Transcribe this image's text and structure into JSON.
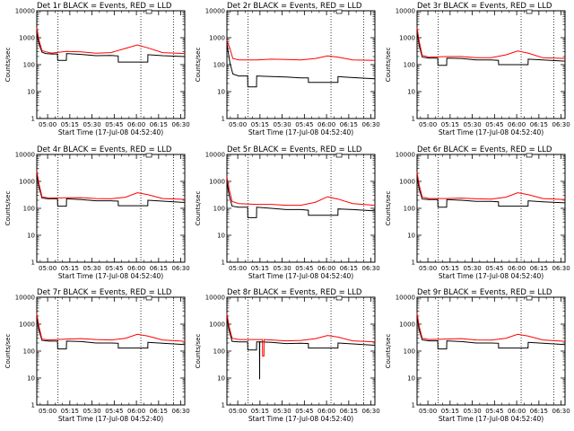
{
  "chart_data": {
    "type": "line",
    "layout": "3x3 grid",
    "ylabel": "Counts/sec",
    "xlabel": "Start Time (17-Jul-08 04:52:40)",
    "xticks": [
      "05:00",
      "05:15",
      "05:30",
      "05:45",
      "06:00",
      "06:15",
      "06:30"
    ],
    "xlim": [
      "04:52:40",
      "06:32:40"
    ],
    "yscale": "log",
    "ylim": [
      1,
      10000
    ],
    "yticks": [
      "1",
      "10",
      "100",
      "1000",
      "10000"
    ],
    "vlines": [
      "05:07",
      "06:03",
      "06:25"
    ],
    "series_colors": {
      "events": "#000000",
      "lld": "#ff0000"
    },
    "panels": [
      {
        "title": "Det 1r BLACK = Events, RED = LLD",
        "lld": [
          [
            0,
            2400
          ],
          [
            1.5,
            800
          ],
          [
            3.5,
            330
          ],
          [
            6,
            300
          ],
          [
            10,
            270
          ],
          [
            20,
            310
          ],
          [
            30,
            300
          ],
          [
            40,
            265
          ],
          [
            50,
            280
          ],
          [
            60,
            400
          ],
          [
            68,
            540
          ],
          [
            75,
            420
          ],
          [
            85,
            280
          ],
          [
            100,
            260
          ]
        ],
        "events": [
          [
            0,
            1500
          ],
          [
            1.5,
            600
          ],
          [
            3.5,
            290
          ],
          [
            6,
            260
          ],
          [
            10,
            250
          ],
          [
            14,
            250
          ],
          [
            14.1,
            145
          ],
          [
            20,
            145
          ],
          [
            20.1,
            260
          ],
          [
            30,
            240
          ],
          [
            40,
            215
          ],
          [
            50,
            220
          ],
          [
            55,
            210
          ],
          [
            55.1,
            125
          ],
          [
            75,
            125
          ],
          [
            75.1,
            235
          ],
          [
            85,
            215
          ],
          [
            100,
            200
          ]
        ]
      },
      {
        "title": "Det 2r BLACK = Events, RED = LLD",
        "lld": [
          [
            0,
            800
          ],
          [
            2,
            400
          ],
          [
            4,
            170
          ],
          [
            8,
            150
          ],
          [
            20,
            150
          ],
          [
            30,
            160
          ],
          [
            40,
            155
          ],
          [
            50,
            150
          ],
          [
            60,
            170
          ],
          [
            68,
            210
          ],
          [
            75,
            190
          ],
          [
            85,
            150
          ],
          [
            100,
            145
          ]
        ],
        "events": [
          [
            0,
            600
          ],
          [
            2,
            120
          ],
          [
            4,
            45
          ],
          [
            8,
            38
          ],
          [
            14,
            38
          ],
          [
            14.1,
            15
          ],
          [
            20,
            15
          ],
          [
            20.1,
            38
          ],
          [
            30,
            36
          ],
          [
            40,
            35
          ],
          [
            50,
            32
          ],
          [
            55,
            32
          ],
          [
            55.1,
            22
          ],
          [
            75,
            22
          ],
          [
            75.1,
            36
          ],
          [
            85,
            33
          ],
          [
            100,
            30
          ]
        ]
      },
      {
        "title": "Det 3r BLACK = Events, RED = LLD",
        "lld": [
          [
            0,
            2400
          ],
          [
            1.5,
            700
          ],
          [
            3.5,
            220
          ],
          [
            8,
            190
          ],
          [
            20,
            200
          ],
          [
            30,
            200
          ],
          [
            40,
            180
          ],
          [
            50,
            180
          ],
          [
            60,
            230
          ],
          [
            68,
            320
          ],
          [
            75,
            270
          ],
          [
            85,
            180
          ],
          [
            100,
            170
          ]
        ],
        "events": [
          [
            0,
            1800
          ],
          [
            1.5,
            500
          ],
          [
            3.5,
            190
          ],
          [
            8,
            175
          ],
          [
            14,
            175
          ],
          [
            14.1,
            95
          ],
          [
            20,
            95
          ],
          [
            20.1,
            175
          ],
          [
            30,
            170
          ],
          [
            40,
            150
          ],
          [
            50,
            150
          ],
          [
            55,
            145
          ],
          [
            55.1,
            100
          ],
          [
            75,
            100
          ],
          [
            75.1,
            160
          ],
          [
            85,
            150
          ],
          [
            100,
            135
          ]
        ]
      },
      {
        "title": "Det 4r BLACK = Events, RED = LLD",
        "lld": [
          [
            0,
            2500
          ],
          [
            1.5,
            800
          ],
          [
            3.5,
            270
          ],
          [
            8,
            240
          ],
          [
            20,
            245
          ],
          [
            30,
            250
          ],
          [
            40,
            230
          ],
          [
            50,
            225
          ],
          [
            60,
            260
          ],
          [
            68,
            380
          ],
          [
            75,
            320
          ],
          [
            85,
            230
          ],
          [
            100,
            215
          ]
        ],
        "events": [
          [
            0,
            1800
          ],
          [
            1.5,
            600
          ],
          [
            3.5,
            240
          ],
          [
            8,
            225
          ],
          [
            14,
            225
          ],
          [
            14.1,
            120
          ],
          [
            20,
            120
          ],
          [
            20.1,
            225
          ],
          [
            30,
            210
          ],
          [
            40,
            190
          ],
          [
            50,
            190
          ],
          [
            55,
            185
          ],
          [
            55.1,
            125
          ],
          [
            75,
            125
          ],
          [
            75.1,
            200
          ],
          [
            85,
            185
          ],
          [
            100,
            165
          ]
        ]
      },
      {
        "title": "Det 5r BLACK = Events, RED = LLD",
        "lld": [
          [
            0,
            1500
          ],
          [
            1.5,
            500
          ],
          [
            3.5,
            180
          ],
          [
            8,
            150
          ],
          [
            20,
            140
          ],
          [
            30,
            140
          ],
          [
            40,
            130
          ],
          [
            50,
            130
          ],
          [
            60,
            170
          ],
          [
            68,
            270
          ],
          [
            75,
            220
          ],
          [
            85,
            150
          ],
          [
            100,
            130
          ]
        ],
        "events": [
          [
            0,
            1000
          ],
          [
            1.5,
            300
          ],
          [
            3.5,
            120
          ],
          [
            8,
            110
          ],
          [
            14,
            110
          ],
          [
            14.1,
            45
          ],
          [
            20,
            45
          ],
          [
            20.1,
            110
          ],
          [
            30,
            100
          ],
          [
            40,
            90
          ],
          [
            50,
            90
          ],
          [
            55,
            85
          ],
          [
            55.1,
            55
          ],
          [
            75,
            55
          ],
          [
            75.1,
            95
          ],
          [
            85,
            90
          ],
          [
            100,
            80
          ]
        ]
      },
      {
        "title": "Det 6r BLACK = Events, RED = LLD",
        "lld": [
          [
            0,
            2200
          ],
          [
            1.5,
            700
          ],
          [
            3.5,
            260
          ],
          [
            8,
            230
          ],
          [
            20,
            230
          ],
          [
            30,
            240
          ],
          [
            40,
            225
          ],
          [
            50,
            220
          ],
          [
            60,
            260
          ],
          [
            68,
            380
          ],
          [
            75,
            320
          ],
          [
            85,
            230
          ],
          [
            100,
            210
          ]
        ],
        "events": [
          [
            0,
            1600
          ],
          [
            1.5,
            500
          ],
          [
            3.5,
            220
          ],
          [
            8,
            210
          ],
          [
            14,
            210
          ],
          [
            14.1,
            110
          ],
          [
            20,
            110
          ],
          [
            20.1,
            210
          ],
          [
            30,
            200
          ],
          [
            40,
            180
          ],
          [
            50,
            180
          ],
          [
            55,
            175
          ],
          [
            55.1,
            120
          ],
          [
            75,
            120
          ],
          [
            75.1,
            190
          ],
          [
            85,
            175
          ],
          [
            100,
            160
          ]
        ]
      },
      {
        "title": "Det 7r BLACK = Events, RED = LLD",
        "lld": [
          [
            0,
            2500
          ],
          [
            1.5,
            800
          ],
          [
            3.5,
            280
          ],
          [
            8,
            260
          ],
          [
            20,
            280
          ],
          [
            30,
            290
          ],
          [
            40,
            270
          ],
          [
            50,
            260
          ],
          [
            60,
            300
          ],
          [
            68,
            420
          ],
          [
            75,
            360
          ],
          [
            85,
            260
          ],
          [
            100,
            230
          ]
        ],
        "events": [
          [
            0,
            1800
          ],
          [
            1.5,
            600
          ],
          [
            3.5,
            250
          ],
          [
            8,
            235
          ],
          [
            14,
            235
          ],
          [
            14.1,
            120
          ],
          [
            20,
            120
          ],
          [
            20.1,
            235
          ],
          [
            30,
            225
          ],
          [
            40,
            200
          ],
          [
            50,
            200
          ],
          [
            55,
            195
          ],
          [
            55.1,
            130
          ],
          [
            75,
            130
          ],
          [
            75.1,
            210
          ],
          [
            85,
            195
          ],
          [
            100,
            175
          ]
        ]
      },
      {
        "title": "Det 8r BLACK = Events, RED = LLD",
        "lld": [
          [
            0,
            2500
          ],
          [
            1.5,
            800
          ],
          [
            3.5,
            300
          ],
          [
            8,
            270
          ],
          [
            20,
            270
          ],
          [
            24,
            270
          ],
          [
            24.1,
            65
          ],
          [
            25,
            65
          ],
          [
            25.1,
            270
          ],
          [
            30,
            260
          ],
          [
            40,
            240
          ],
          [
            50,
            250
          ],
          [
            60,
            290
          ],
          [
            68,
            380
          ],
          [
            75,
            330
          ],
          [
            85,
            240
          ],
          [
            100,
            220
          ]
        ],
        "events": [
          [
            0,
            1800
          ],
          [
            1.5,
            600
          ],
          [
            3.5,
            230
          ],
          [
            8,
            220
          ],
          [
            14,
            220
          ],
          [
            14.1,
            110
          ],
          [
            20,
            110
          ],
          [
            20.1,
            220
          ],
          [
            22,
            220
          ],
          [
            22.1,
            9
          ],
          [
            22.2,
            220
          ],
          [
            30,
            210
          ],
          [
            40,
            190
          ],
          [
            50,
            195
          ],
          [
            55,
            190
          ],
          [
            55.1,
            130
          ],
          [
            75,
            130
          ],
          [
            75.1,
            200
          ],
          [
            85,
            185
          ],
          [
            100,
            165
          ]
        ]
      },
      {
        "title": "Det 9r BLACK = Events, RED = LLD",
        "lld": [
          [
            0,
            2600
          ],
          [
            1.5,
            800
          ],
          [
            3.5,
            300
          ],
          [
            8,
            270
          ],
          [
            20,
            280
          ],
          [
            30,
            290
          ],
          [
            40,
            260
          ],
          [
            50,
            255
          ],
          [
            60,
            300
          ],
          [
            68,
            420
          ],
          [
            75,
            360
          ],
          [
            85,
            260
          ],
          [
            100,
            230
          ]
        ],
        "events": [
          [
            0,
            1900
          ],
          [
            1.5,
            600
          ],
          [
            3.5,
            260
          ],
          [
            8,
            240
          ],
          [
            14,
            240
          ],
          [
            14.1,
            120
          ],
          [
            20,
            120
          ],
          [
            20.1,
            240
          ],
          [
            30,
            225
          ],
          [
            40,
            200
          ],
          [
            50,
            200
          ],
          [
            55,
            195
          ],
          [
            55.1,
            130
          ],
          [
            75,
            130
          ],
          [
            75.1,
            210
          ],
          [
            85,
            195
          ],
          [
            100,
            175
          ]
        ]
      }
    ]
  }
}
